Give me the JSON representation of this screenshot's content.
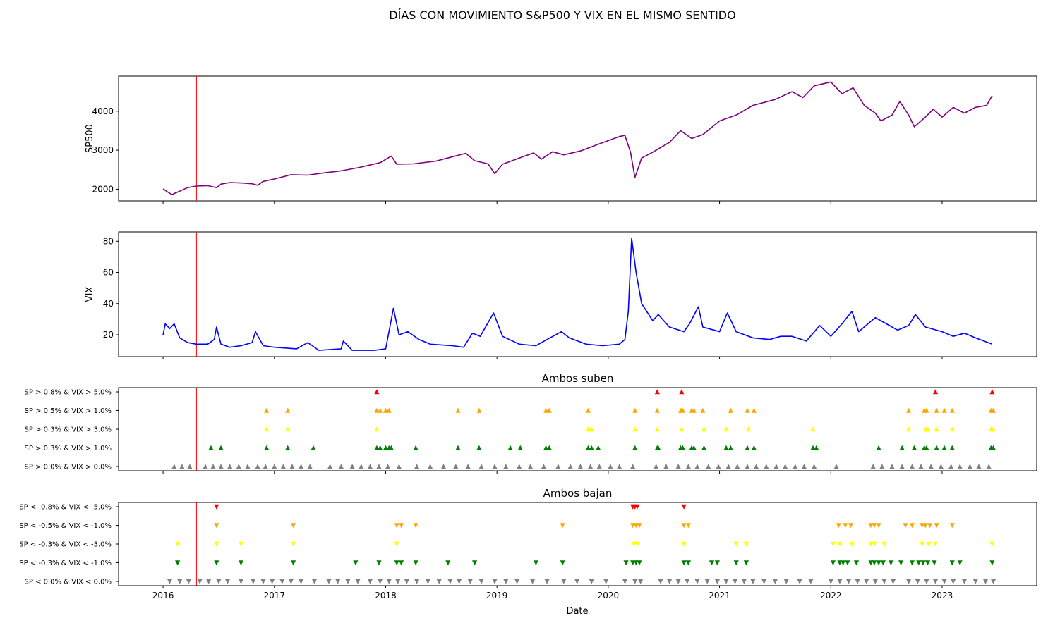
{
  "figure": {
    "suptitle": "DÍAS CON MOVIMIENTO S&P500 Y VIX EN EL MISMO SENTIDO",
    "xlabel": "Date",
    "x_ticks": [
      "2016",
      "2017",
      "2018",
      "2019",
      "2020",
      "2021",
      "2022",
      "2023"
    ],
    "x_range": [
      2015.6,
      2023.85
    ],
    "marker_line": {
      "date": 2016.3,
      "color": "#ff0000"
    }
  },
  "chart_data": [
    {
      "type": "line",
      "panel": "sp500",
      "ylabel": "SP500",
      "ylim": [
        1700,
        4900
      ],
      "y_ticks": [
        2000,
        3000,
        4000
      ],
      "color": "#800080",
      "points": [
        [
          2016.0,
          2010
        ],
        [
          2016.04,
          1930
        ],
        [
          2016.08,
          1860
        ],
        [
          2016.11,
          1900
        ],
        [
          2016.15,
          1950
        ],
        [
          2016.22,
          2040
        ],
        [
          2016.3,
          2080
        ],
        [
          2016.4,
          2090
        ],
        [
          2016.48,
          2040
        ],
        [
          2016.52,
          2130
        ],
        [
          2016.6,
          2170
        ],
        [
          2016.7,
          2160
        ],
        [
          2016.8,
          2140
        ],
        [
          2016.85,
          2100
        ],
        [
          2016.9,
          2200
        ],
        [
          2017.0,
          2260
        ],
        [
          2017.15,
          2370
        ],
        [
          2017.3,
          2360
        ],
        [
          2017.45,
          2420
        ],
        [
          2017.6,
          2470
        ],
        [
          2017.75,
          2550
        ],
        [
          2017.95,
          2680
        ],
        [
          2018.05,
          2850
        ],
        [
          2018.1,
          2640
        ],
        [
          2018.25,
          2650
        ],
        [
          2018.45,
          2720
        ],
        [
          2018.72,
          2920
        ],
        [
          2018.8,
          2730
        ],
        [
          2018.92,
          2650
        ],
        [
          2018.98,
          2400
        ],
        [
          2019.05,
          2640
        ],
        [
          2019.25,
          2850
        ],
        [
          2019.33,
          2930
        ],
        [
          2019.4,
          2770
        ],
        [
          2019.5,
          2960
        ],
        [
          2019.6,
          2880
        ],
        [
          2019.75,
          2980
        ],
        [
          2019.9,
          3140
        ],
        [
          2020.1,
          3350
        ],
        [
          2020.15,
          3380
        ],
        [
          2020.2,
          2950
        ],
        [
          2020.24,
          2300
        ],
        [
          2020.3,
          2800
        ],
        [
          2020.4,
          2950
        ],
        [
          2020.55,
          3200
        ],
        [
          2020.65,
          3500
        ],
        [
          2020.75,
          3300
        ],
        [
          2020.85,
          3400
        ],
        [
          2021.0,
          3750
        ],
        [
          2021.15,
          3900
        ],
        [
          2021.3,
          4150
        ],
        [
          2021.5,
          4300
        ],
        [
          2021.65,
          4500
        ],
        [
          2021.75,
          4350
        ],
        [
          2021.85,
          4650
        ],
        [
          2022.0,
          4750
        ],
        [
          2022.1,
          4450
        ],
        [
          2022.2,
          4600
        ],
        [
          2022.3,
          4150
        ],
        [
          2022.4,
          3950
        ],
        [
          2022.45,
          3750
        ],
        [
          2022.55,
          3900
        ],
        [
          2022.62,
          4250
        ],
        [
          2022.7,
          3900
        ],
        [
          2022.75,
          3600
        ],
        [
          2022.85,
          3850
        ],
        [
          2022.92,
          4050
        ],
        [
          2023.0,
          3850
        ],
        [
          2023.1,
          4100
        ],
        [
          2023.2,
          3950
        ],
        [
          2023.3,
          4100
        ],
        [
          2023.4,
          4150
        ],
        [
          2023.45,
          4400
        ]
      ]
    },
    {
      "type": "line",
      "panel": "vix",
      "ylabel": "VIX",
      "ylim": [
        6,
        86
      ],
      "y_ticks": [
        20,
        40,
        60,
        80
      ],
      "color": "#0000ff",
      "points": [
        [
          2016.0,
          20
        ],
        [
          2016.02,
          27
        ],
        [
          2016.06,
          24
        ],
        [
          2016.1,
          27
        ],
        [
          2016.15,
          18
        ],
        [
          2016.22,
          15
        ],
        [
          2016.3,
          14
        ],
        [
          2016.4,
          14
        ],
        [
          2016.46,
          17
        ],
        [
          2016.48,
          25
        ],
        [
          2016.52,
          14
        ],
        [
          2016.6,
          12
        ],
        [
          2016.7,
          13
        ],
        [
          2016.8,
          15
        ],
        [
          2016.83,
          22
        ],
        [
          2016.9,
          13
        ],
        [
          2017.0,
          12
        ],
        [
          2017.2,
          11
        ],
        [
          2017.3,
          15
        ],
        [
          2017.4,
          10
        ],
        [
          2017.6,
          11
        ],
        [
          2017.62,
          16
        ],
        [
          2017.7,
          10
        ],
        [
          2017.9,
          10
        ],
        [
          2018.0,
          11
        ],
        [
          2018.07,
          37
        ],
        [
          2018.12,
          20
        ],
        [
          2018.2,
          22
        ],
        [
          2018.3,
          17
        ],
        [
          2018.4,
          14
        ],
        [
          2018.6,
          13
        ],
        [
          2018.7,
          12
        ],
        [
          2018.78,
          21
        ],
        [
          2018.85,
          19
        ],
        [
          2018.97,
          34
        ],
        [
          2019.05,
          19
        ],
        [
          2019.2,
          14
        ],
        [
          2019.35,
          13
        ],
        [
          2019.45,
          17
        ],
        [
          2019.58,
          22
        ],
        [
          2019.65,
          18
        ],
        [
          2019.8,
          14
        ],
        [
          2019.95,
          13
        ],
        [
          2020.1,
          14
        ],
        [
          2020.15,
          17
        ],
        [
          2020.18,
          35
        ],
        [
          2020.21,
          82
        ],
        [
          2020.25,
          60
        ],
        [
          2020.3,
          40
        ],
        [
          2020.4,
          29
        ],
        [
          2020.45,
          33
        ],
        [
          2020.55,
          25
        ],
        [
          2020.68,
          22
        ],
        [
          2020.73,
          27
        ],
        [
          2020.81,
          38
        ],
        [
          2020.85,
          25
        ],
        [
          2021.0,
          22
        ],
        [
          2021.07,
          34
        ],
        [
          2021.15,
          22
        ],
        [
          2021.3,
          18
        ],
        [
          2021.45,
          17
        ],
        [
          2021.55,
          19
        ],
        [
          2021.65,
          19
        ],
        [
          2021.78,
          16
        ],
        [
          2021.9,
          26
        ],
        [
          2022.0,
          19
        ],
        [
          2022.1,
          27
        ],
        [
          2022.19,
          35
        ],
        [
          2022.25,
          22
        ],
        [
          2022.4,
          31
        ],
        [
          2022.5,
          27
        ],
        [
          2022.6,
          23
        ],
        [
          2022.7,
          26
        ],
        [
          2022.76,
          33
        ],
        [
          2022.85,
          25
        ],
        [
          2023.0,
          22
        ],
        [
          2023.1,
          19
        ],
        [
          2023.2,
          21
        ],
        [
          2023.3,
          18
        ],
        [
          2023.45,
          14
        ]
      ]
    },
    {
      "type": "scatter",
      "panel": "up",
      "title": "Ambos suben",
      "marker": "triangle-up",
      "categories": [
        "SP > 0.0% & VIX > 0.0%",
        "SP > 0.3% & VIX > 1.0%",
        "SP > 0.3% & VIX > 3.0%",
        "SP > 0.5% & VIX > 1.0%",
        "SP > 0.8% & VIX > 5.0%"
      ],
      "series": [
        {
          "level": 4,
          "color": "#ff0000",
          "dates": [
            2017.92,
            2020.44,
            2020.66,
            2022.94,
            2023.45
          ]
        },
        {
          "level": 3,
          "color": "#ffa500",
          "dates": [
            2016.93,
            2017.12,
            2017.92,
            2017.95,
            2018.0,
            2018.03,
            2018.65,
            2018.84,
            2019.44,
            2019.47,
            2019.82,
            2020.24,
            2020.44,
            2020.65,
            2020.67,
            2020.75,
            2020.77,
            2020.85,
            2021.1,
            2021.25,
            2021.31,
            2022.7,
            2022.84,
            2022.86,
            2022.95,
            2023.02,
            2023.09,
            2023.44,
            2023.46
          ]
        },
        {
          "level": 2,
          "color": "#ffff00",
          "dates": [
            2016.93,
            2017.12,
            2017.92,
            2019.82,
            2019.85,
            2020.24,
            2020.44,
            2020.66,
            2020.86,
            2021.06,
            2021.26,
            2021.84,
            2022.7,
            2022.85,
            2022.87,
            2022.95,
            2023.09,
            2023.44,
            2023.46
          ]
        },
        {
          "level": 1,
          "color": "#008000",
          "dates": [
            2016.43,
            2016.52,
            2016.93,
            2017.12,
            2017.35,
            2017.92,
            2017.95,
            2018.0,
            2018.03,
            2018.05,
            2018.27,
            2018.65,
            2018.84,
            2019.12,
            2019.21,
            2019.44,
            2019.47,
            2019.82,
            2019.85,
            2019.91,
            2020.24,
            2020.44,
            2020.45,
            2020.65,
            2020.67,
            2020.75,
            2020.77,
            2020.86,
            2021.06,
            2021.1,
            2021.25,
            2021.31,
            2021.84,
            2021.87,
            2022.43,
            2022.64,
            2022.75,
            2022.84,
            2022.86,
            2022.95,
            2023.02,
            2023.09,
            2023.44,
            2023.46
          ]
        },
        {
          "level": 0,
          "color": "#808080",
          "dates": [
            2016.1,
            2016.17,
            2016.24,
            2016.38,
            2016.45,
            2016.52,
            2016.6,
            2016.68,
            2016.76,
            2016.85,
            2016.92,
            2017.0,
            2017.08,
            2017.16,
            2017.24,
            2017.32,
            2017.5,
            2017.6,
            2017.7,
            2017.78,
            2017.86,
            2017.94,
            2018.02,
            2018.12,
            2018.28,
            2018.4,
            2018.52,
            2018.63,
            2018.74,
            2018.86,
            2018.98,
            2019.08,
            2019.2,
            2019.3,
            2019.42,
            2019.55,
            2019.66,
            2019.75,
            2019.84,
            2019.92,
            2020.02,
            2020.1,
            2020.22,
            2020.43,
            2020.52,
            2020.63,
            2020.72,
            2020.8,
            2020.9,
            2020.99,
            2021.08,
            2021.16,
            2021.25,
            2021.33,
            2021.42,
            2021.51,
            2021.59,
            2021.68,
            2021.76,
            2021.85,
            2022.05,
            2022.38,
            2022.46,
            2022.55,
            2022.64,
            2022.73,
            2022.81,
            2022.9,
            2022.99,
            2023.08,
            2023.16,
            2023.25,
            2023.33,
            2023.42
          ]
        }
      ]
    },
    {
      "type": "scatter",
      "panel": "down",
      "title": "Ambos bajan",
      "marker": "triangle-down",
      "categories": [
        "SP < 0.0% & VIX < 0.0%",
        "SP < -0.3% & VIX < -1.0%",
        "SP < -0.3% & VIX < -3.0%",
        "SP < -0.5% & VIX < -1.0%",
        "SP < -0.8% & VIX < -5.0%"
      ],
      "series": [
        {
          "level": 4,
          "color": "#ff0000",
          "dates": [
            2016.48,
            2020.22,
            2020.24,
            2020.26,
            2020.68
          ]
        },
        {
          "level": 3,
          "color": "#ffa500",
          "dates": [
            2016.48,
            2017.17,
            2018.1,
            2018.14,
            2018.27,
            2019.59,
            2020.22,
            2020.25,
            2020.28,
            2020.68,
            2020.72,
            2022.07,
            2022.13,
            2022.18,
            2022.36,
            2022.39,
            2022.43,
            2022.67,
            2022.73,
            2022.82,
            2022.85,
            2022.89,
            2022.95,
            2023.09
          ]
        },
        {
          "level": 2,
          "color": "#ffff00",
          "dates": [
            2016.13,
            2016.48,
            2016.7,
            2017.17,
            2018.1,
            2020.23,
            2020.26,
            2020.68,
            2021.15,
            2021.24,
            2022.02,
            2022.08,
            2022.19,
            2022.36,
            2022.39,
            2022.48,
            2022.82,
            2022.88,
            2022.94,
            2023.45
          ]
        },
        {
          "level": 1,
          "color": "#008000",
          "dates": [
            2016.13,
            2016.48,
            2016.7,
            2017.17,
            2017.73,
            2017.94,
            2018.1,
            2018.14,
            2018.27,
            2018.56,
            2018.8,
            2019.35,
            2019.59,
            2020.16,
            2020.22,
            2020.25,
            2020.28,
            2020.68,
            2020.72,
            2020.93,
            2020.98,
            2021.15,
            2021.24,
            2022.02,
            2022.08,
            2022.11,
            2022.15,
            2022.23,
            2022.36,
            2022.39,
            2022.43,
            2022.47,
            2022.54,
            2022.63,
            2022.73,
            2022.79,
            2022.83,
            2022.87,
            2022.93,
            2023.09,
            2023.16,
            2023.45
          ]
        },
        {
          "level": 0,
          "color": "#808080",
          "dates": [
            2016.06,
            2016.15,
            2016.23,
            2016.33,
            2016.41,
            2016.5,
            2016.58,
            2016.7,
            2016.81,
            2016.9,
            2016.98,
            2017.07,
            2017.15,
            2017.24,
            2017.36,
            2017.49,
            2017.57,
            2017.66,
            2017.75,
            2017.86,
            2017.95,
            2018.03,
            2018.11,
            2018.19,
            2018.28,
            2018.38,
            2018.48,
            2018.58,
            2018.66,
            2018.76,
            2018.86,
            2018.98,
            2019.08,
            2019.18,
            2019.32,
            2019.45,
            2019.6,
            2019.72,
            2019.85,
            2019.98,
            2020.15,
            2020.24,
            2020.29,
            2020.47,
            2020.55,
            2020.63,
            2020.71,
            2020.8,
            2020.89,
            2020.98,
            2021.06,
            2021.14,
            2021.22,
            2021.3,
            2021.4,
            2021.5,
            2021.6,
            2021.72,
            2021.82,
            2022.0,
            2022.08,
            2022.16,
            2022.24,
            2022.32,
            2022.4,
            2022.48,
            2022.56,
            2022.7,
            2022.78,
            2022.86,
            2022.94,
            2023.02,
            2023.1,
            2023.2,
            2023.3,
            2023.39,
            2023.46
          ]
        }
      ]
    }
  ]
}
